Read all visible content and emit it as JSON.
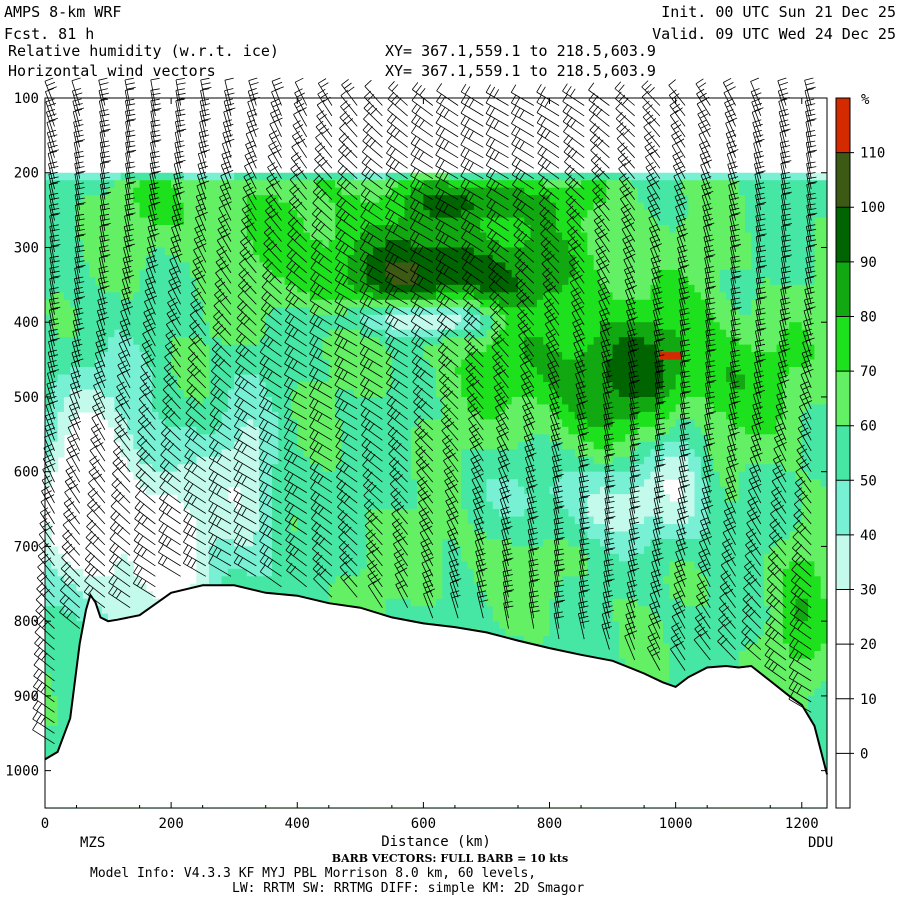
{
  "header": {
    "model": "AMPS 8-km WRF",
    "fcst": "Fcst.   81 h",
    "init": "Init. 00 UTC Sun 21 Dec 25",
    "valid": "Valid. 09 UTC Wed 24 Dec 25",
    "field1": "Relative humidity (w.r.t. ice)",
    "field2": "Horizontal wind vectors",
    "xy1": "XY= 367.1,559.1 to 218.5,603.9",
    "xy2": "XY= 367.1,559.1 to 218.5,603.9"
  },
  "footer": {
    "start_label": "MZS",
    "end_label": "DDU",
    "barb_note": "BARB VECTORS: FULL BARB = 10 kts",
    "model_info_1": "Model Info: V4.3.3   KF     MYJ PBL  Morrison          8.0 km,  60 levels,",
    "model_info_2": "LW: RRTM SW: RRTMG   DIFF: simple KM: 2D Smagor"
  },
  "chart_data": {
    "type": "heatmap",
    "xlabel": "Distance (km)",
    "ylabel": "",
    "x_ticks": [
      "0",
      "200",
      "400",
      "600",
      "800",
      "1000",
      "1200"
    ],
    "y_ticks": [
      "100",
      "200",
      "300",
      "400",
      "500",
      "600",
      "700",
      "800",
      "900",
      "1000"
    ],
    "xlim": [
      0,
      1240
    ],
    "ylim": [
      1050,
      100
    ],
    "colorbar": {
      "unit": "%",
      "levels": [
        "110",
        "100",
        "90",
        "80",
        "70",
        "60",
        "50",
        "40",
        "30",
        "20",
        "10",
        "0"
      ],
      "bins": [
        {
          "min": 110,
          "color": "#d42a00"
        },
        {
          "min": 100,
          "color": "#3c5a14"
        },
        {
          "min": 90,
          "color": "#006400"
        },
        {
          "min": 80,
          "color": "#11a811"
        },
        {
          "min": 70,
          "color": "#1ee11e"
        },
        {
          "min": 60,
          "color": "#64f064"
        },
        {
          "min": 50,
          "color": "#46e6a5"
        },
        {
          "min": 40,
          "color": "#78f0d4"
        },
        {
          "min": 30,
          "color": "#c3faeb"
        },
        {
          "min": 20,
          "color": "#ffffff"
        },
        {
          "min": 10,
          "color": "#ffffff"
        },
        {
          "min": 0,
          "color": "#ffffff"
        },
        {
          "min": -10,
          "color": "#ffffff"
        }
      ]
    },
    "terrain_profile": {
      "x": [
        0,
        20,
        40,
        55,
        65,
        72,
        80,
        88,
        100,
        115,
        150,
        200,
        250,
        300,
        350,
        400,
        450,
        500,
        550,
        600,
        650,
        700,
        750,
        800,
        850,
        900,
        950,
        980,
        1000,
        1020,
        1050,
        1080,
        1100,
        1120,
        1150,
        1180,
        1200,
        1220,
        1240
      ],
      "p": [
        985,
        975,
        930,
        830,
        785,
        765,
        775,
        795,
        800,
        798,
        792,
        762,
        752,
        752,
        762,
        766,
        776,
        782,
        795,
        803,
        808,
        815,
        826,
        836,
        845,
        853,
        870,
        882,
        888,
        875,
        862,
        860,
        862,
        860,
        880,
        900,
        912,
        940,
        1005
      ]
    },
    "barb_columns_km": [
      15,
      55,
      95,
      135,
      175,
      215,
      255,
      295,
      335,
      375,
      415,
      455,
      495,
      535,
      575,
      615,
      655,
      695,
      735,
      775,
      815,
      855,
      895,
      935,
      975,
      1015,
      1055,
      1095,
      1135,
      1175,
      1215
    ]
  }
}
